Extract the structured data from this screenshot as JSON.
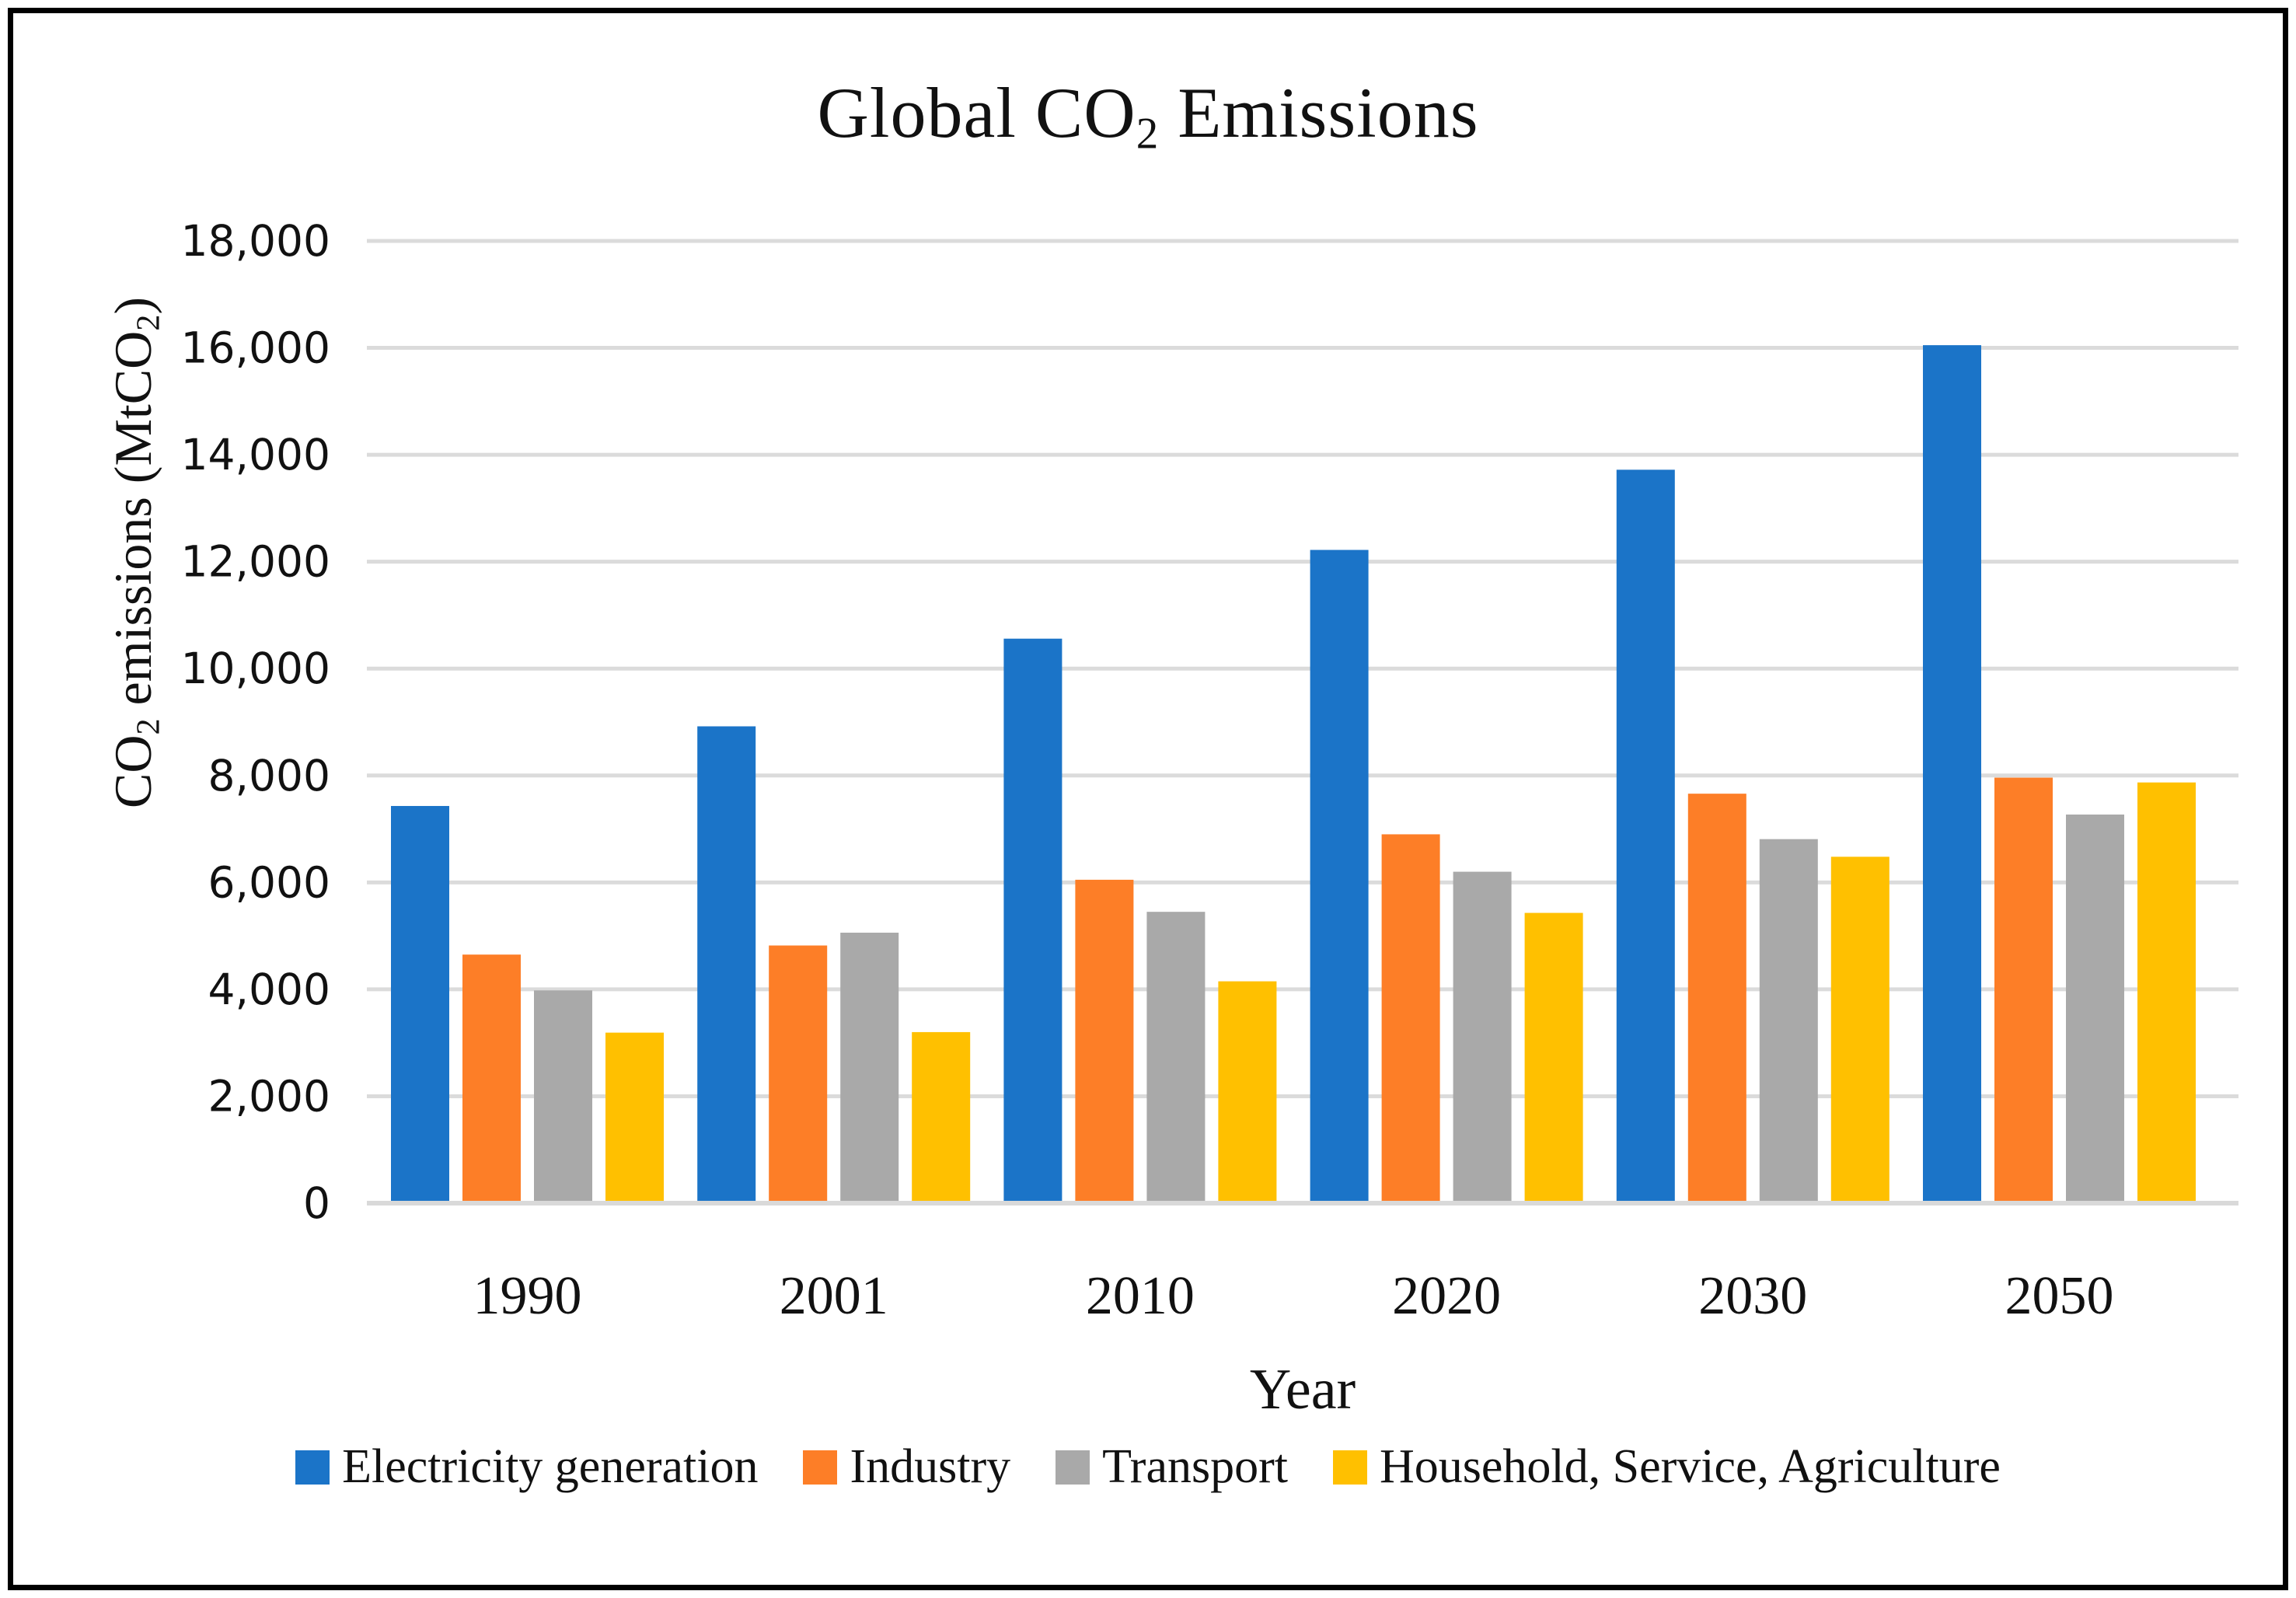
{
  "figure": {
    "title": {
      "pre": "Global CO",
      "sub": "2",
      "post": " Emissions"
    },
    "y_axis_title": {
      "p1": "CO",
      "s1": "2",
      "p2": " emissions (MtCO",
      "s2": "2",
      "p3": ")"
    },
    "x_axis_title": "Year"
  },
  "chart_data": {
    "type": "bar",
    "title": "Global CO2 Emissions",
    "xlabel": "Year",
    "ylabel": "CO2 emissions (MtCO2)",
    "categories": [
      "1990",
      "2001",
      "2010",
      "2020",
      "2030",
      "2050"
    ],
    "series": [
      {
        "name": "Electricity generation",
        "color": "#1B74C8",
        "values": [
          7430,
          8920,
          10560,
          12220,
          13720,
          16050
        ]
      },
      {
        "name": "Industry",
        "color": "#FD7E27",
        "values": [
          4650,
          4820,
          6050,
          6900,
          7660,
          7960
        ]
      },
      {
        "name": "Transport",
        "color": "#A9A9A9",
        "values": [
          3980,
          5060,
          5450,
          6200,
          6810,
          7270
        ]
      },
      {
        "name": "Household, Service, Agriculture",
        "color": "#FFC000",
        "values": [
          3190,
          3200,
          4150,
          5430,
          6480,
          7870
        ]
      }
    ],
    "ylim": [
      0,
      18000
    ],
    "ytick_step": 2000,
    "ytick_labels": [
      "0",
      "2,000",
      "4,000",
      "6,000",
      "8,000",
      "10,000",
      "12,000",
      "14,000",
      "16,000",
      "18,000"
    ],
    "grid": true,
    "gridline_color": "#DBDBDB",
    "axis_line_color": "#D9D9D9",
    "legend_position": "bottom"
  }
}
